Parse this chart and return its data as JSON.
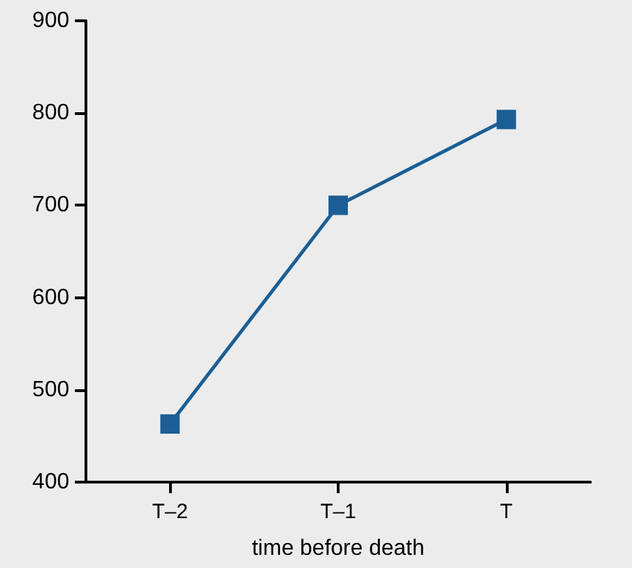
{
  "chart_data": {
    "type": "line",
    "xlabel": "time before death",
    "categories": [
      "T–2",
      "T–1",
      "T"
    ],
    "series": [
      {
        "color": "#1b5e96",
        "values": [
          463,
          700,
          793
        ]
      }
    ],
    "ylim": [
      400,
      900
    ],
    "yticks": [
      400,
      500,
      600,
      700,
      800,
      900
    ],
    "grid": false,
    "marker": "square",
    "line_style": "solid"
  }
}
